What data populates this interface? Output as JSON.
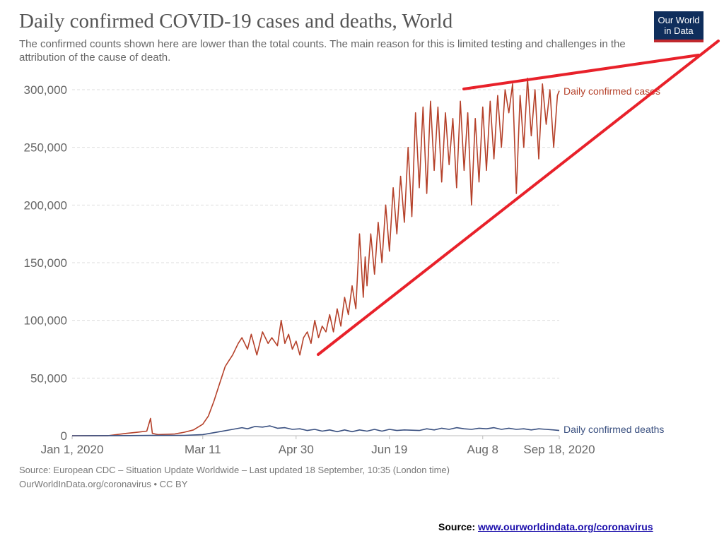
{
  "title": "Daily confirmed COVID-19 cases and deaths, World",
  "subtitle": "The confirmed counts shown here are lower than the total counts. The main reason for this is limited testing and challenges in the attribution of the cause of death.",
  "logo": {
    "line1": "Our World",
    "line2": "in Data",
    "bg": "#0f2e5c",
    "accent": "#c0282d"
  },
  "footer": {
    "line1": "Source: European CDC – Situation Update Worldwide – Last updated 18 September, 10:35 (London time)",
    "line2": "OurWorldInData.org/coronavirus • CC BY"
  },
  "source_note": {
    "label": "Source:",
    "link": "www.ourworldindata.org/coronavirus"
  },
  "colors": {
    "cases": "#b5412a",
    "deaths": "#3a5080",
    "annotation": "#e8212a",
    "grid": "#dddddd",
    "tick": "#666666"
  },
  "chart_data": {
    "type": "line",
    "x_tick_labels": [
      "Jan 1, 2020",
      "Mar 11",
      "Apr 30",
      "Jun 19",
      "Aug 8",
      "Sep 18, 2020"
    ],
    "y_tick_labels": [
      "0",
      "50,000",
      "100,000",
      "150,000",
      "200,000",
      "250,000",
      "300,000"
    ],
    "ylim": [
      0,
      300000
    ],
    "xlim": [
      "2020-01-01",
      "2020-09-18"
    ],
    "grid": "horizontal dashed",
    "series": [
      {
        "name": "Daily confirmed cases",
        "x": [
          "2020-01-01",
          "2020-01-20",
          "2020-01-30",
          "2020-02-05",
          "2020-02-10",
          "2020-02-12",
          "2020-02-13",
          "2020-02-16",
          "2020-02-25",
          "2020-03-01",
          "2020-03-06",
          "2020-03-11",
          "2020-03-14",
          "2020-03-17",
          "2020-03-20",
          "2020-03-23",
          "2020-03-25",
          "2020-03-27",
          "2020-03-30",
          "2020-04-01",
          "2020-04-04",
          "2020-04-06",
          "2020-04-09",
          "2020-04-12",
          "2020-04-15",
          "2020-04-17",
          "2020-04-20",
          "2020-04-22",
          "2020-04-24",
          "2020-04-26",
          "2020-04-28",
          "2020-04-30",
          "2020-05-02",
          "2020-05-04",
          "2020-05-06",
          "2020-05-08",
          "2020-05-10",
          "2020-05-12",
          "2020-05-14",
          "2020-05-16",
          "2020-05-18",
          "2020-05-20",
          "2020-05-22",
          "2020-05-24",
          "2020-05-26",
          "2020-05-28",
          "2020-05-30",
          "2020-06-01",
          "2020-06-03",
          "2020-06-05",
          "2020-06-06",
          "2020-06-07",
          "2020-06-09",
          "2020-06-11",
          "2020-06-13",
          "2020-06-15",
          "2020-06-17",
          "2020-06-19",
          "2020-06-21",
          "2020-06-23",
          "2020-06-25",
          "2020-06-27",
          "2020-06-29",
          "2020-07-01",
          "2020-07-03",
          "2020-07-05",
          "2020-07-07",
          "2020-07-09",
          "2020-07-11",
          "2020-07-13",
          "2020-07-15",
          "2020-07-17",
          "2020-07-19",
          "2020-07-21",
          "2020-07-23",
          "2020-07-25",
          "2020-07-27",
          "2020-07-29",
          "2020-07-31",
          "2020-08-02",
          "2020-08-04",
          "2020-08-06",
          "2020-08-08",
          "2020-08-10",
          "2020-08-12",
          "2020-08-14",
          "2020-08-16",
          "2020-08-18",
          "2020-08-20",
          "2020-08-22",
          "2020-08-24",
          "2020-08-26",
          "2020-08-28",
          "2020-08-30",
          "2020-09-01",
          "2020-09-03",
          "2020-09-05",
          "2020-09-07",
          "2020-09-09",
          "2020-09-11",
          "2020-09-13",
          "2020-09-15",
          "2020-09-17",
          "2020-09-18"
        ],
        "values": [
          0,
          0,
          2000,
          3000,
          4000,
          15000,
          2000,
          1000,
          1500,
          3000,
          5000,
          10000,
          17000,
          30000,
          45000,
          60000,
          65000,
          70000,
          80000,
          85000,
          75000,
          88000,
          70000,
          90000,
          80000,
          85000,
          78000,
          100000,
          80000,
          88000,
          75000,
          82000,
          70000,
          85000,
          90000,
          80000,
          100000,
          85000,
          95000,
          90000,
          105000,
          90000,
          110000,
          95000,
          120000,
          105000,
          130000,
          110000,
          175000,
          120000,
          155000,
          130000,
          175000,
          140000,
          185000,
          150000,
          200000,
          160000,
          215000,
          175000,
          225000,
          185000,
          250000,
          190000,
          280000,
          215000,
          285000,
          210000,
          290000,
          230000,
          285000,
          220000,
          280000,
          235000,
          275000,
          215000,
          290000,
          230000,
          280000,
          200000,
          275000,
          220000,
          285000,
          230000,
          290000,
          240000,
          295000,
          250000,
          300000,
          280000,
          305000,
          210000,
          295000,
          250000,
          310000,
          260000,
          300000,
          240000,
          305000,
          270000,
          300000,
          250000,
          295000,
          299000
        ]
      },
      {
        "name": "Daily confirmed deaths",
        "x": [
          "2020-01-01",
          "2020-02-01",
          "2020-02-12",
          "2020-03-01",
          "2020-03-11",
          "2020-03-20",
          "2020-03-27",
          "2020-04-01",
          "2020-04-04",
          "2020-04-08",
          "2020-04-12",
          "2020-04-16",
          "2020-04-20",
          "2020-04-24",
          "2020-04-28",
          "2020-05-02",
          "2020-05-06",
          "2020-05-10",
          "2020-05-14",
          "2020-05-18",
          "2020-05-22",
          "2020-05-26",
          "2020-05-30",
          "2020-06-03",
          "2020-06-07",
          "2020-06-11",
          "2020-06-15",
          "2020-06-19",
          "2020-06-23",
          "2020-06-27",
          "2020-07-01",
          "2020-07-05",
          "2020-07-09",
          "2020-07-13",
          "2020-07-17",
          "2020-07-21",
          "2020-07-25",
          "2020-07-29",
          "2020-08-02",
          "2020-08-06",
          "2020-08-10",
          "2020-08-14",
          "2020-08-18",
          "2020-08-22",
          "2020-08-26",
          "2020-08-30",
          "2020-09-03",
          "2020-09-07",
          "2020-09-11",
          "2020-09-15",
          "2020-09-18"
        ],
        "values": [
          0,
          100,
          250,
          300,
          1000,
          3500,
          5500,
          7000,
          6000,
          8000,
          7500,
          8500,
          6500,
          7000,
          5500,
          6000,
          4500,
          5500,
          4000,
          5000,
          3500,
          5000,
          3500,
          5000,
          4000,
          5500,
          4000,
          5500,
          4500,
          5000,
          4800,
          4500,
          6000,
          5000,
          6500,
          5500,
          7000,
          6000,
          5500,
          6500,
          6000,
          7000,
          5500,
          6500,
          5500,
          6000,
          5000,
          6000,
          5500,
          5000,
          4500
        ]
      }
    ],
    "annotations": "two red trend lines forming a converging triangle (upper flat line across peaks, lower rising line across troughs)"
  }
}
